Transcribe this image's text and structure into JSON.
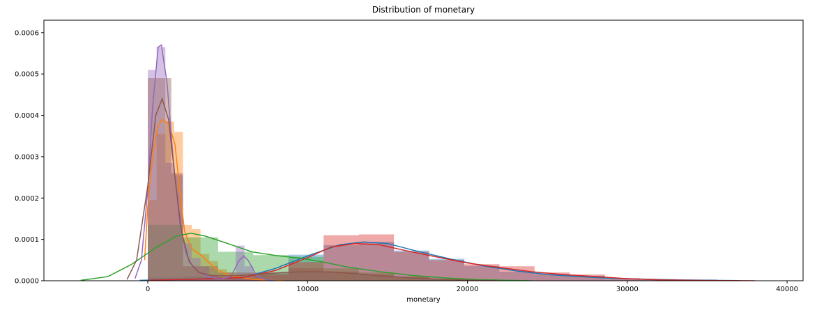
{
  "chart_data": {
    "type": "histogram-kde",
    "title": "Distribution of monetary",
    "xlabel": "monetary",
    "ylabel": "",
    "xlim": [
      -6500,
      41000
    ],
    "ylim": [
      0,
      0.00063
    ],
    "grid": false,
    "legend": "none",
    "x_ticks": [
      0,
      10000,
      20000,
      30000,
      40000
    ],
    "x_tick_labels": [
      "0",
      "10000",
      "20000",
      "30000",
      "40000"
    ],
    "y_ticks": [
      0,
      0.0001,
      0.0002,
      0.0003,
      0.0004,
      0.0005,
      0.0006
    ],
    "y_tick_labels": [
      "0.0000",
      "0.0001",
      "0.0002",
      "0.0003",
      "0.0004",
      "0.0005",
      "0.0006"
    ],
    "series": [
      {
        "color": "#1f77b4",
        "bins": [
          [
            0,
            2200,
            8e-06
          ],
          [
            2200,
            4400,
            1e-05
          ],
          [
            4400,
            6600,
            6e-06
          ],
          [
            6600,
            8800,
            1.8e-05
          ],
          [
            8800,
            11000,
            6.3e-05
          ],
          [
            11000,
            13200,
            8.6e-05
          ],
          [
            13200,
            15400,
            9.4e-05
          ],
          [
            15400,
            17600,
            7.3e-05
          ],
          [
            17600,
            19800,
            5.3e-05
          ],
          [
            19800,
            22000,
            3.6e-05
          ],
          [
            22000,
            24200,
            2.2e-05
          ],
          [
            24200,
            26400,
            1.6e-05
          ],
          [
            26400,
            28600,
            1.2e-05
          ],
          [
            28600,
            30800,
            6e-06
          ],
          [
            30800,
            33000,
            4e-06
          ],
          [
            33000,
            35600,
            3e-06
          ]
        ],
        "kde": [
          [
            -500,
            1e-06
          ],
          [
            3000,
            4e-06
          ],
          [
            6000,
            8e-06
          ],
          [
            8000,
            3e-05
          ],
          [
            10000,
            6e-05
          ],
          [
            12000,
            8.7e-05
          ],
          [
            13500,
            9.4e-05
          ],
          [
            15000,
            9e-05
          ],
          [
            17000,
            7e-05
          ],
          [
            19000,
            5.2e-05
          ],
          [
            21000,
            3.6e-05
          ],
          [
            23000,
            2.4e-05
          ],
          [
            25000,
            1.5e-05
          ],
          [
            27000,
            1e-05
          ],
          [
            29000,
            6e-06
          ],
          [
            31000,
            4e-06
          ],
          [
            33000,
            2e-06
          ],
          [
            35000,
            1e-06
          ],
          [
            37000,
            5e-07
          ]
        ]
      },
      {
        "color": "#ff7f0e",
        "bins": [
          [
            0,
            550,
            0.000195
          ],
          [
            550,
            1100,
            0.000355
          ],
          [
            1100,
            1650,
            0.000385
          ],
          [
            1650,
            2200,
            0.00036
          ],
          [
            2200,
            2750,
            0.000135
          ],
          [
            2750,
            3300,
            0.000125
          ],
          [
            3300,
            3850,
            6.5e-05
          ],
          [
            3850,
            4400,
            4.8e-05
          ],
          [
            4400,
            4950,
            2.8e-05
          ],
          [
            4950,
            5500,
            2e-05
          ],
          [
            5500,
            6050,
            1.2e-05
          ],
          [
            6050,
            6600,
            1e-05
          ],
          [
            6600,
            7150,
            4e-06
          ]
        ],
        "kde": [
          [
            -200,
            5e-05
          ],
          [
            0,
            0.00018
          ],
          [
            300,
            0.0003
          ],
          [
            600,
            0.00037
          ],
          [
            900,
            0.00039
          ],
          [
            1300,
            0.00038
          ],
          [
            1700,
            0.00033
          ],
          [
            2000,
            0.00022
          ],
          [
            2300,
            0.00012
          ],
          [
            2700,
            8e-05
          ],
          [
            3000,
            7e-05
          ],
          [
            3400,
            6e-05
          ],
          [
            3800,
            4.5e-05
          ],
          [
            4200,
            3e-05
          ],
          [
            4700,
            2e-05
          ],
          [
            5200,
            1.2e-05
          ],
          [
            5800,
            8e-06
          ],
          [
            6500,
            4e-06
          ],
          [
            7500,
            1e-06
          ],
          [
            8500,
            0
          ]
        ]
      },
      {
        "color": "#2ca02c",
        "bins": [
          [
            0,
            2200,
            0.000135
          ],
          [
            2200,
            4400,
            0.000105
          ],
          [
            4400,
            6600,
            7e-05
          ],
          [
            6600,
            8800,
            6.2e-05
          ],
          [
            8800,
            11000,
            5.8e-05
          ],
          [
            11000,
            13200,
            3e-05
          ],
          [
            13200,
            15400,
            2e-05
          ],
          [
            15400,
            17600,
            1e-05
          ],
          [
            17600,
            19800,
            5e-06
          ],
          [
            19800,
            22000,
            3e-06
          ]
        ],
        "kde": [
          [
            -4200,
            1e-06
          ],
          [
            -2500,
            1e-05
          ],
          [
            -1000,
            4e-05
          ],
          [
            500,
            8e-05
          ],
          [
            1800,
            0.000108
          ],
          [
            2700,
            0.000115
          ],
          [
            3600,
            0.000108
          ],
          [
            5000,
            9e-05
          ],
          [
            6500,
            7e-05
          ],
          [
            8000,
            6.1e-05
          ],
          [
            9500,
            5.5e-05
          ],
          [
            11000,
            4.5e-05
          ],
          [
            12500,
            3.3e-05
          ],
          [
            14500,
            2.2e-05
          ],
          [
            16500,
            1.3e-05
          ],
          [
            18500,
            7e-06
          ],
          [
            20500,
            3e-06
          ],
          [
            22500,
            1e-06
          ],
          [
            24000,
            0
          ]
        ]
      },
      {
        "color": "#d62728",
        "bins": [
          [
            0,
            2200,
            3e-06
          ],
          [
            2200,
            4400,
            4e-06
          ],
          [
            4400,
            6600,
            8e-06
          ],
          [
            6600,
            8800,
            1.5e-05
          ],
          [
            8800,
            11000,
            4.5e-05
          ],
          [
            11000,
            13200,
            0.00011
          ],
          [
            13200,
            15400,
            0.000112
          ],
          [
            15400,
            17600,
            7e-05
          ],
          [
            17600,
            19800,
            5e-05
          ],
          [
            19800,
            22000,
            4e-05
          ],
          [
            22000,
            24200,
            3.5e-05
          ],
          [
            24200,
            26400,
            2e-05
          ],
          [
            26400,
            28600,
            1.5e-05
          ],
          [
            28600,
            30800,
            4e-06
          ],
          [
            30800,
            33000,
            2e-06
          ]
        ],
        "kde": [
          [
            0,
            1e-06
          ],
          [
            3000,
            4e-06
          ],
          [
            6000,
            8e-06
          ],
          [
            8000,
            2.5e-05
          ],
          [
            10000,
            5.6e-05
          ],
          [
            11500,
            8.2e-05
          ],
          [
            13000,
            9e-05
          ],
          [
            14500,
            8.7e-05
          ],
          [
            16000,
            7.4e-05
          ],
          [
            18000,
            5.8e-05
          ],
          [
            20000,
            4.3e-05
          ],
          [
            22000,
            3.2e-05
          ],
          [
            24000,
            2.2e-05
          ],
          [
            26000,
            1.5e-05
          ],
          [
            28000,
            1e-05
          ],
          [
            30000,
            5e-06
          ],
          [
            32000,
            2e-06
          ],
          [
            34000,
            1e-06
          ],
          [
            38000,
            0
          ]
        ]
      },
      {
        "color": "#9467bd",
        "bins": [
          [
            0,
            550,
            0.00051
          ],
          [
            550,
            1100,
            0.000565
          ],
          [
            1100,
            1650,
            0.000285
          ],
          [
            1650,
            2200,
            0.000255
          ],
          [
            2200,
            2750,
            9e-05
          ],
          [
            2750,
            3300,
            5.5e-05
          ],
          [
            3300,
            3850,
            3.5e-05
          ],
          [
            3850,
            4400,
            1.5e-05
          ],
          [
            4400,
            4950,
            8e-06
          ],
          [
            4950,
            5500,
            6e-06
          ],
          [
            5500,
            6050,
            8.5e-05
          ],
          [
            6050,
            6600,
            3.5e-05
          ],
          [
            6600,
            7150,
            3e-06
          ]
        ],
        "kde": [
          [
            -800,
            5e-06
          ],
          [
            -400,
            5e-05
          ],
          [
            0,
            0.00022
          ],
          [
            300,
            0.00042
          ],
          [
            650,
            0.000565
          ],
          [
            850,
            0.00057
          ],
          [
            1200,
            0.00048
          ],
          [
            1600,
            0.00029
          ],
          [
            2000,
            0.00014
          ],
          [
            2400,
            6.5e-05
          ],
          [
            2800,
            3.5e-05
          ],
          [
            3200,
            2e-05
          ],
          [
            3800,
            1e-05
          ],
          [
            4500,
            4e-06
          ],
          [
            5200,
            1e-05
          ],
          [
            5700,
            4.8e-05
          ],
          [
            6000,
            6e-05
          ],
          [
            6300,
            4.8e-05
          ],
          [
            6800,
            1.2e-05
          ],
          [
            7400,
            2e-06
          ],
          [
            8000,
            0
          ]
        ]
      },
      {
        "color": "#8c564b",
        "bins": [
          [
            0,
            1470,
            0.00049
          ],
          [
            1470,
            2200,
            0.00026
          ],
          [
            2200,
            4400,
            3.5e-05
          ],
          [
            4400,
            6600,
            2e-05
          ],
          [
            6600,
            8800,
            2e-05
          ],
          [
            8800,
            11000,
            3e-05
          ],
          [
            11000,
            13200,
            2.2e-05
          ],
          [
            13200,
            15400,
            1.5e-05
          ],
          [
            15400,
            17600,
            1e-05
          ],
          [
            17600,
            19800,
            4e-06
          ]
        ],
        "kde": [
          [
            -1300,
            3e-06
          ],
          [
            -700,
            5e-05
          ],
          [
            0,
            0.00023
          ],
          [
            500,
            0.0004
          ],
          [
            900,
            0.00044
          ],
          [
            1300,
            0.00039
          ],
          [
            1700,
            0.00025
          ],
          [
            2100,
            0.00012
          ],
          [
            2600,
            4.5e-05
          ],
          [
            3200,
            2e-05
          ],
          [
            4000,
            1.2e-05
          ],
          [
            5500,
            1.2e-05
          ],
          [
            7000,
            1.6e-05
          ],
          [
            8500,
            2e-05
          ],
          [
            10000,
            2.2e-05
          ],
          [
            11500,
            2.1e-05
          ],
          [
            13000,
            1.7e-05
          ],
          [
            14500,
            1.2e-05
          ],
          [
            16500,
            7e-06
          ],
          [
            18500,
            3e-06
          ],
          [
            20500,
            1e-06
          ],
          [
            22000,
            0
          ]
        ]
      }
    ]
  }
}
